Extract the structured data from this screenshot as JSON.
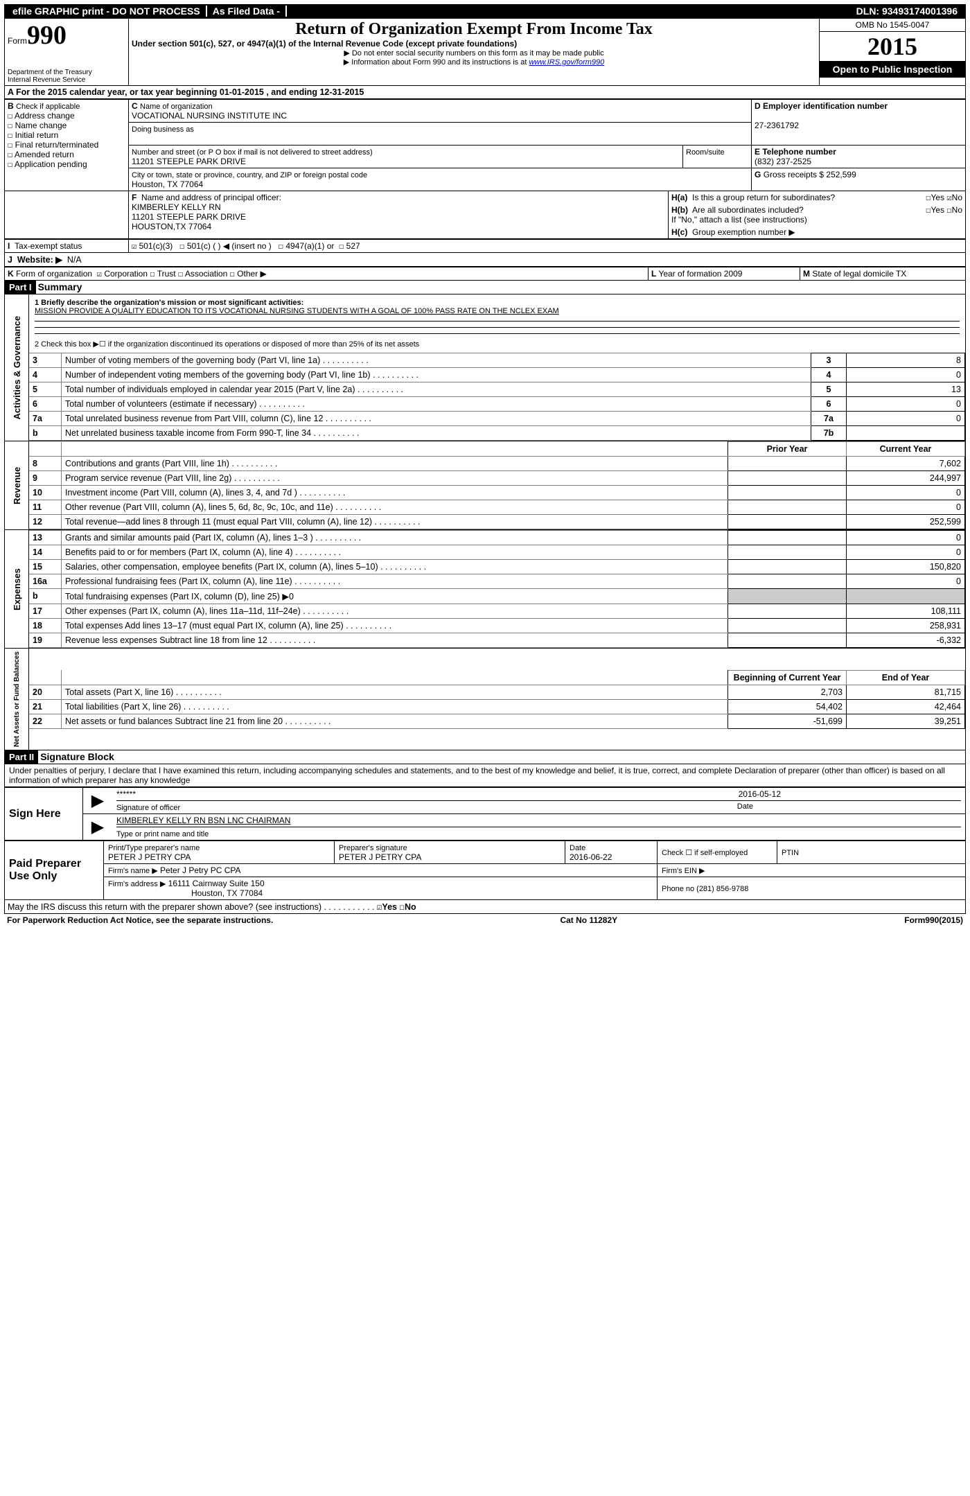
{
  "topbar": {
    "seg1": "efile GRAPHIC print - DO NOT PROCESS",
    "seg2": "As Filed Data -",
    "seg3": "DLN: 93493174001396"
  },
  "header": {
    "form_label": "Form",
    "form_number": "990",
    "dept": "Department of the Treasury",
    "irs": "Internal Revenue Service",
    "title": "Return of Organization Exempt From Income Tax",
    "subtitle": "Under section 501(c), 527, or 4947(a)(1) of the Internal Revenue Code (except private foundations)",
    "note1": "▶ Do not enter social security numbers on this form as it may be made public",
    "note2_a": "▶ Information about Form 990 and its instructions is at ",
    "note2_link": "www.IRS.gov/form990",
    "omb": "OMB No  1545-0047",
    "year": "2015",
    "open": "Open to Public Inspection"
  },
  "lineA": {
    "prefix": "A  For the 2015 calendar year, or tax year beginning ",
    "start": "01-01-2015",
    "mid": "  , and ending ",
    "end": "12-31-2015"
  },
  "boxB": {
    "label": "B",
    "sub": "Check if applicable",
    "opts": [
      "Address change",
      "Name change",
      "Initial return",
      "Final return/terminated",
      "Amended return",
      "Application pending"
    ]
  },
  "boxC": {
    "label": "C",
    "name_lbl": "Name of organization",
    "name": "VOCATIONAL NURSING INSTITUTE INC",
    "dba_lbl": "Doing business as",
    "dba": "",
    "addr_lbl": "Number and street (or P O  box if mail is not delivered to street address)",
    "room_lbl": "Room/suite",
    "addr": "11201 STEEPLE PARK DRIVE",
    "city_lbl": "City or town, state or province, country, and ZIP or foreign postal code",
    "city": "Houston, TX  77064"
  },
  "boxD": {
    "label": "D Employer identification number",
    "value": "27-2361792"
  },
  "boxE": {
    "label": "E Telephone number",
    "value": "(832) 237-2525"
  },
  "boxG": {
    "label": "G",
    "text": "Gross receipts $",
    "value": "252,599"
  },
  "boxF": {
    "label": "F",
    "lbl": "Name and address of principal officer:",
    "line1": "KIMBERLEY KELLY RN",
    "line2": "11201 STEEPLE PARK DRIVE",
    "line3": "HOUSTON,TX 77064"
  },
  "boxH": {
    "ha": "H(a)",
    "ha_txt": "Is this a group return for subordinates?",
    "hb": "H(b)",
    "hb_txt": "Are all subordinates included?",
    "hb_note": "If \"No,\" attach a list  (see instructions)",
    "hc": "H(c)",
    "hc_txt": "Group exemption number ▶",
    "yes": "Yes",
    "no": "No"
  },
  "boxI": {
    "label": "I",
    "txt": "Tax-exempt status",
    "o1": "501(c)(3)",
    "o2": "501(c) (  ) ◀ (insert no )",
    "o3": "4947(a)(1) or",
    "o4": "527"
  },
  "boxJ": {
    "label": "J",
    "txt": "Website: ▶",
    "value": "N/A"
  },
  "boxK": {
    "label": "K",
    "txt": "Form of organization",
    "o1": "Corporation",
    "o2": "Trust",
    "o3": "Association",
    "o4": "Other ▶"
  },
  "boxL": {
    "label": "L",
    "txt": "Year of formation",
    "value": "2009"
  },
  "boxM": {
    "label": "M",
    "txt": "State of legal domicile",
    "value": "TX"
  },
  "part1": {
    "label": "Part I",
    "title": "Summary",
    "l1": "1 Briefly describe the organization's mission or most significant activities:",
    "mission": "MISSION  PROVIDE A QUALITY EDUCATION TO ITS VOCATIONAL NURSING STUDENTS WITH A GOAL OF 100% PASS RATE ON THE NCLEX EXAM",
    "l2": "2  Check this box ▶☐ if the organization discontinued its operations or disposed of more than 25% of its net assets",
    "ag": [
      {
        "n": "3",
        "d": "Number of voting members of the governing body (Part VI, line 1a)",
        "b": "3",
        "v": "8"
      },
      {
        "n": "4",
        "d": "Number of independent voting members of the governing body (Part VI, line 1b)",
        "b": "4",
        "v": "0"
      },
      {
        "n": "5",
        "d": "Total number of individuals employed in calendar year 2015 (Part V, line 2a)",
        "b": "5",
        "v": "13"
      },
      {
        "n": "6",
        "d": "Total number of volunteers (estimate if necessary)",
        "b": "6",
        "v": "0"
      },
      {
        "n": "7a",
        "d": "Total unrelated business revenue from Part VIII, column (C), line 12",
        "b": "7a",
        "v": "0"
      },
      {
        "n": "b",
        "d": "Net unrelated business taxable income from Form 990-T, line 34",
        "b": "7b",
        "v": ""
      }
    ],
    "prior_hdr": "Prior Year",
    "curr_hdr": "Current Year",
    "rev": [
      {
        "n": "8",
        "d": "Contributions and grants (Part VIII, line 1h)",
        "p": "",
        "c": "7,602"
      },
      {
        "n": "9",
        "d": "Program service revenue (Part VIII, line 2g)",
        "p": "",
        "c": "244,997"
      },
      {
        "n": "10",
        "d": "Investment income (Part VIII, column (A), lines 3, 4, and 7d )",
        "p": "",
        "c": "0"
      },
      {
        "n": "11",
        "d": "Other revenue (Part VIII, column (A), lines 5, 6d, 8c, 9c, 10c, and 11e)",
        "p": "",
        "c": "0"
      },
      {
        "n": "12",
        "d": "Total revenue—add lines 8 through 11 (must equal Part VIII, column (A), line 12)",
        "p": "",
        "c": "252,599"
      }
    ],
    "exp": [
      {
        "n": "13",
        "d": "Grants and similar amounts paid (Part IX, column (A), lines 1–3 )",
        "p": "",
        "c": "0"
      },
      {
        "n": "14",
        "d": "Benefits paid to or for members (Part IX, column (A), line 4)",
        "p": "",
        "c": "0"
      },
      {
        "n": "15",
        "d": "Salaries, other compensation, employee benefits (Part IX, column (A), lines 5–10)",
        "p": "",
        "c": "150,820"
      },
      {
        "n": "16a",
        "d": "Professional fundraising fees (Part IX, column (A), line 11e)",
        "p": "",
        "c": "0"
      },
      {
        "n": "b",
        "d": "Total fundraising expenses (Part IX, column (D), line 25) ▶0",
        "p": "SHADE",
        "c": "SHADE"
      },
      {
        "n": "17",
        "d": "Other expenses (Part IX, column (A), lines 11a–11d, 11f–24e)",
        "p": "",
        "c": "108,111"
      },
      {
        "n": "18",
        "d": "Total expenses  Add lines 13–17 (must equal Part IX, column (A), line 25)",
        "p": "",
        "c": "258,931"
      },
      {
        "n": "19",
        "d": "Revenue less expenses  Subtract line 18 from line 12",
        "p": "",
        "c": "-6,332"
      }
    ],
    "na_hdr1": "Beginning of Current Year",
    "na_hdr2": "End of Year",
    "na": [
      {
        "n": "20",
        "d": "Total assets (Part X, line 16)",
        "p": "2,703",
        "c": "81,715"
      },
      {
        "n": "21",
        "d": "Total liabilities (Part X, line 26)",
        "p": "54,402",
        "c": "42,464"
      },
      {
        "n": "22",
        "d": "Net assets or fund balances  Subtract line 21 from line 20",
        "p": "-51,699",
        "c": "39,251"
      }
    ],
    "side_ag": "Activities & Governance",
    "side_rev": "Revenue",
    "side_exp": "Expenses",
    "side_na": "Net Assets or Fund Balances"
  },
  "part2": {
    "label": "Part II",
    "title": "Signature Block",
    "perjury": "Under penalties of perjury, I declare that I have examined this return, including accompanying schedules and statements, and to the best of my knowledge and belief, it is true, correct, and complete  Declaration of preparer (other than officer) is based on all information of which preparer has any knowledge",
    "sign_here": "Sign Here",
    "sig_stars": "******",
    "sig_date": "2016-05-12",
    "sig_lbl": "Signature of officer",
    "date_lbl": "Date",
    "officer": "KIMBERLEY KELLY RN BSN LNC CHAIRMAN",
    "officer_lbl": "Type or print name and title",
    "paid": "Paid Preparer Use Only",
    "prep_name_lbl": "Print/Type preparer's name",
    "prep_name": "PETER J PETRY CPA",
    "prep_sig_lbl": "Preparer's signature",
    "prep_sig": "PETER J PETRY CPA",
    "prep_date_lbl": "Date",
    "prep_date": "2016-06-22",
    "prep_check": "Check ☐ if self-employed",
    "ptin": "PTIN",
    "firm_name_lbl": "Firm's name    ▶",
    "firm_name": "Peter J Petry PC CPA",
    "firm_ein": "Firm's EIN ▶",
    "firm_addr_lbl": "Firm's address ▶",
    "firm_addr1": "16111 Cairnway Suite 150",
    "firm_addr2": "Houston, TX  77084",
    "firm_phone": "Phone no  (281) 856-9788",
    "discuss": "May the IRS discuss this return with the preparer shown above? (see instructions)",
    "discuss_yes": "Yes",
    "discuss_no": "No"
  },
  "footer": {
    "left": "For Paperwork Reduction Act Notice, see the separate instructions.",
    "mid": "Cat  No  11282Y",
    "right": "Form 990 (2015)"
  },
  "style": {
    "bg_black": "#000000",
    "fg_white": "#ffffff",
    "shade": "#cccccc",
    "border_gray": "#808080"
  }
}
